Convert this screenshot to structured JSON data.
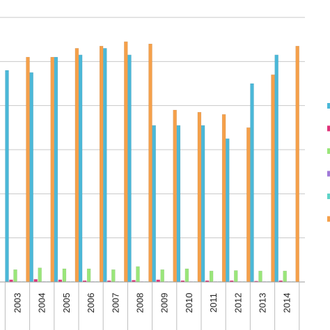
{
  "chart_data": {
    "type": "bar",
    "title": "",
    "xlabel": "",
    "ylabel": "",
    "categories": [
      "2003",
      "2004",
      "2005",
      "2006",
      "2007",
      "2008",
      "2009",
      "2010",
      "2011",
      "2012",
      "2013",
      "2014"
    ],
    "ylim": [
      0,
      6.0
    ],
    "grid": true,
    "legend_position": "right",
    "series": [
      {
        "color": "#4bb8d8",
        "values": [
          4.8,
          4.75,
          5.1,
          5.15,
          5.3,
          5.15,
          3.55,
          3.55,
          3.55,
          3.25,
          4.5,
          5.15
        ]
      },
      {
        "color": "#e0337a",
        "values": [
          0.05,
          0.06,
          0.05,
          0.03,
          0.03,
          0.04,
          0.05,
          0.03,
          0.03,
          0.03,
          0.02,
          0.03
        ]
      },
      {
        "color": "#9ae67a",
        "values": [
          0.28,
          0.32,
          0.3,
          0.3,
          0.28,
          0.35,
          0.28,
          0.3,
          0.25,
          0.26,
          0.25,
          0.25
        ]
      },
      {
        "color": "#a07ad8",
        "values": [
          0.01,
          0.01,
          0.01,
          0.01,
          0.01,
          0.01,
          0.01,
          0.01,
          0.01,
          0.01,
          0.01,
          0.01
        ]
      },
      {
        "color": "#5fd3c8",
        "values": [
          0.01,
          0.01,
          0.01,
          0.01,
          0.01,
          0.01,
          0.01,
          0.01,
          0.01,
          0.01,
          0.01,
          0.01
        ]
      },
      {
        "color": "#f5a04a",
        "values": [
          5.1,
          5.1,
          5.3,
          5.35,
          5.45,
          5.4,
          3.9,
          3.85,
          3.8,
          3.5,
          4.7,
          5.35
        ]
      }
    ],
    "legend": [
      {
        "color": "#4bb8d8"
      },
      {
        "color": "#e0337a"
      },
      {
        "color": "#9ae67a"
      },
      {
        "color": "#a07ad8"
      },
      {
        "color": "#5fd3c8"
      },
      {
        "color": "#f5a04a"
      }
    ]
  }
}
